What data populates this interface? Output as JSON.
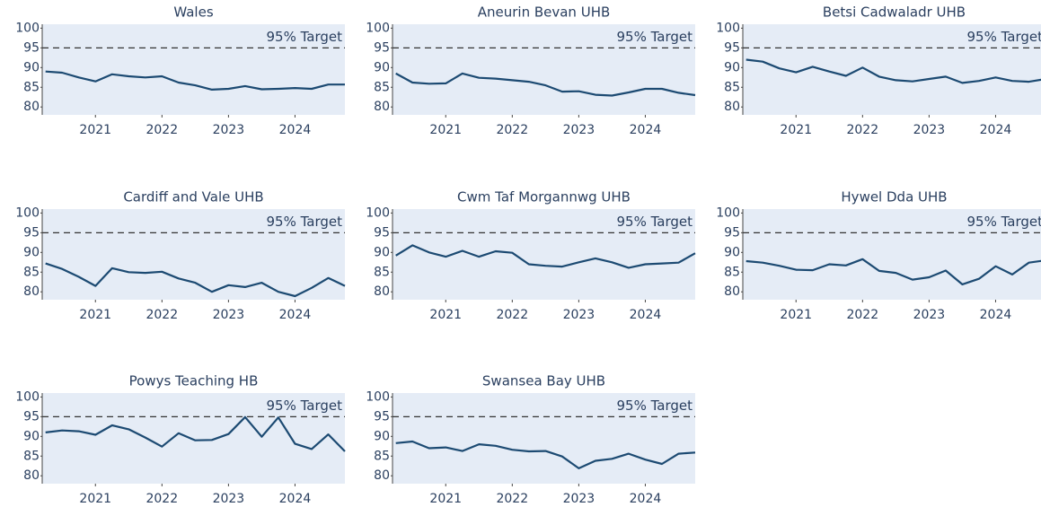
{
  "chart_data": [
    {
      "type": "line",
      "title": "Wales",
      "color": "#1c4a72",
      "x": [
        2020.25,
        2020.5,
        2020.75,
        2021,
        2021.25,
        2021.5,
        2021.75,
        2022,
        2022.25,
        2022.5,
        2022.75,
        2023,
        2023.25,
        2023.5,
        2023.75,
        2024,
        2024.25,
        2024.5,
        2024.75
      ],
      "values": [
        89,
        88.7,
        87.5,
        86.5,
        88.3,
        87.8,
        87.5,
        87.8,
        86.2,
        85.5,
        84.4,
        84.6,
        85.3,
        84.5,
        84.6,
        84.8,
        84.6,
        85.7,
        85.7
      ],
      "xlim": [
        2020.2,
        2024.75
      ],
      "xticks": [
        2021,
        2022,
        2023,
        2024
      ],
      "ylim": [
        78,
        101
      ],
      "yticks": [
        80,
        85,
        90,
        95,
        100
      ],
      "target": 95,
      "annotation": "95% Target"
    },
    {
      "type": "line",
      "title": "Aneurin Bevan UHB",
      "color": "#1c4a72",
      "x": [
        2020.25,
        2020.5,
        2020.75,
        2021,
        2021.25,
        2021.5,
        2021.75,
        2022,
        2022.25,
        2022.5,
        2022.75,
        2023,
        2023.25,
        2023.5,
        2023.75,
        2024,
        2024.25,
        2024.5,
        2024.75
      ],
      "values": [
        88.5,
        86.2,
        85.9,
        86,
        88.5,
        87.4,
        87.2,
        86.8,
        86.4,
        85.5,
        83.9,
        84,
        83.1,
        82.9,
        83.7,
        84.6,
        84.6,
        83.6,
        83
      ],
      "xlim": [
        2020.2,
        2024.75
      ],
      "xticks": [
        2021,
        2022,
        2023,
        2024
      ],
      "ylim": [
        78,
        101
      ],
      "yticks": [
        80,
        85,
        90,
        95,
        100
      ],
      "target": 95,
      "annotation": "95% Target"
    },
    {
      "type": "line",
      "title": "Betsi Cadwaladr UHB",
      "color": "#1c4a72",
      "x": [
        2020.25,
        2020.5,
        2020.75,
        2021,
        2021.25,
        2021.5,
        2021.75,
        2022,
        2022.25,
        2022.5,
        2022.75,
        2023,
        2023.25,
        2023.5,
        2023.75,
        2024,
        2024.25,
        2024.5,
        2024.75
      ],
      "values": [
        92,
        91.5,
        89.8,
        88.8,
        90.2,
        89,
        87.9,
        90,
        87.7,
        86.8,
        86.5,
        87.1,
        87.7,
        86.1,
        86.6,
        87.5,
        86.6,
        86.4,
        87.1
      ],
      "xlim": [
        2020.2,
        2024.75
      ],
      "xticks": [
        2021,
        2022,
        2023,
        2024
      ],
      "ylim": [
        78,
        101
      ],
      "yticks": [
        80,
        85,
        90,
        95,
        100
      ],
      "target": 95,
      "annotation": "95% Target"
    },
    {
      "type": "line",
      "title": "Cardiff and Vale UHB",
      "color": "#1c4a72",
      "x": [
        2020.25,
        2020.5,
        2020.75,
        2021,
        2021.25,
        2021.5,
        2021.75,
        2022,
        2022.25,
        2022.5,
        2022.75,
        2023,
        2023.25,
        2023.5,
        2023.75,
        2024,
        2024.25,
        2024.5,
        2024.75
      ],
      "values": [
        87.2,
        85.8,
        83.8,
        81.5,
        86,
        85,
        84.8,
        85.1,
        83.4,
        82.3,
        80,
        81.7,
        81.2,
        82.3,
        80,
        78.9,
        81,
        83.5,
        81.5
      ],
      "xlim": [
        2020.2,
        2024.75
      ],
      "xticks": [
        2021,
        2022,
        2023,
        2024
      ],
      "ylim": [
        78,
        101
      ],
      "yticks": [
        80,
        85,
        90,
        95,
        100
      ],
      "target": 95,
      "annotation": "95% Target"
    },
    {
      "type": "line",
      "title": "Cwm Taf Morgannwg UHB",
      "color": "#1c4a72",
      "x": [
        2020.25,
        2020.5,
        2020.75,
        2021,
        2021.25,
        2021.5,
        2021.75,
        2022,
        2022.25,
        2022.5,
        2022.75,
        2023,
        2023.25,
        2023.5,
        2023.75,
        2024,
        2024.25,
        2024.5,
        2024.75
      ],
      "values": [
        89.2,
        91.8,
        90,
        88.9,
        90.4,
        88.9,
        90.3,
        89.9,
        87,
        86.6,
        86.4,
        87.5,
        88.5,
        87.5,
        86.1,
        87,
        87.2,
        87.4,
        89.8
      ],
      "xlim": [
        2020.2,
        2024.75
      ],
      "xticks": [
        2021,
        2022,
        2023,
        2024
      ],
      "ylim": [
        78,
        101
      ],
      "yticks": [
        80,
        85,
        90,
        95,
        100
      ],
      "target": 95,
      "annotation": "95% Target"
    },
    {
      "type": "line",
      "title": "Hywel Dda UHB",
      "color": "#1c4a72",
      "x": [
        2020.25,
        2020.5,
        2020.75,
        2021,
        2021.25,
        2021.5,
        2021.75,
        2022,
        2022.25,
        2022.5,
        2022.75,
        2023,
        2023.25,
        2023.5,
        2023.75,
        2024,
        2024.25,
        2024.5,
        2024.75
      ],
      "values": [
        87.8,
        87.4,
        86.6,
        85.6,
        85.5,
        87,
        86.7,
        88.3,
        85.3,
        84.8,
        83.1,
        83.7,
        85.4,
        81.9,
        83.3,
        86.5,
        84.4,
        87.4,
        88
      ],
      "xlim": [
        2020.2,
        2024.75
      ],
      "xticks": [
        2021,
        2022,
        2023,
        2024
      ],
      "ylim": [
        78,
        101
      ],
      "yticks": [
        80,
        85,
        90,
        95,
        100
      ],
      "target": 95,
      "annotation": "95% Target"
    },
    {
      "type": "line",
      "title": "Powys Teaching HB",
      "color": "#1c4a72",
      "x": [
        2020.25,
        2020.5,
        2020.75,
        2021,
        2021.25,
        2021.5,
        2021.75,
        2022,
        2022.25,
        2022.5,
        2022.75,
        2023,
        2023.25,
        2023.5,
        2023.75,
        2024,
        2024.25,
        2024.5,
        2024.75
      ],
      "values": [
        91,
        91.5,
        91.3,
        90.4,
        92.8,
        91.8,
        89.7,
        87.4,
        90.8,
        89,
        89.1,
        90.6,
        94.9,
        89.9,
        94.8,
        88.1,
        86.8,
        90.5,
        86.2
      ],
      "xlim": [
        2020.2,
        2024.75
      ],
      "xticks": [
        2021,
        2022,
        2023,
        2024
      ],
      "ylim": [
        78,
        101
      ],
      "yticks": [
        80,
        85,
        90,
        95,
        100
      ],
      "target": 95,
      "annotation": "95% Target"
    },
    {
      "type": "line",
      "title": "Swansea Bay UHB",
      "color": "#1c4a72",
      "x": [
        2020.25,
        2020.5,
        2020.75,
        2021,
        2021.25,
        2021.5,
        2021.75,
        2022,
        2022.25,
        2022.5,
        2022.75,
        2023,
        2023.25,
        2023.5,
        2023.75,
        2024,
        2024.25,
        2024.5,
        2024.75
      ],
      "values": [
        88.3,
        88.7,
        87,
        87.2,
        86.3,
        88,
        87.6,
        86.6,
        86.2,
        86.3,
        84.9,
        81.9,
        83.8,
        84.3,
        85.6,
        84.1,
        83,
        85.6,
        85.9
      ],
      "xlim": [
        2020.2,
        2024.75
      ],
      "xticks": [
        2021,
        2022,
        2023,
        2024
      ],
      "ylim": [
        78,
        101
      ],
      "yticks": [
        80,
        85,
        90,
        95,
        100
      ],
      "target": 95,
      "annotation": "95% Target"
    }
  ]
}
